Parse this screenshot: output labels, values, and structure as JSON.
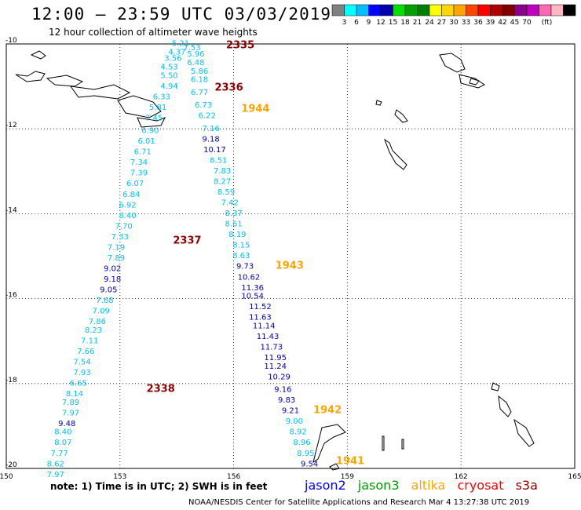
{
  "header": {
    "title": "12:00 – 23:59 UTC 03/03/2019",
    "subtitle": "12 hour collection of altimeter wave heights"
  },
  "scale": {
    "colors": [
      "#808080",
      "#00ffff",
      "#00bfff",
      "#0000ff",
      "#0000b0",
      "#00e000",
      "#00a000",
      "#008000",
      "#ffff00",
      "#ffd700",
      "#ffa500",
      "#ff4500",
      "#ff0000",
      "#b00000",
      "#800000",
      "#8b008b",
      "#c000c0",
      "#ff69b4",
      "#ffb6c1",
      "#000000"
    ],
    "labels": [
      "3",
      "6",
      "9",
      "12",
      "15",
      "18",
      "21",
      "24",
      "27",
      "30",
      "33",
      "36",
      "39",
      "42",
      "45",
      "70",
      "(ft)"
    ]
  },
  "satellites": {
    "jason2": {
      "label": "jason2",
      "color": "#0000ff"
    },
    "jason3": {
      "label": "jason3",
      "color": "#00a000"
    },
    "altika": {
      "label": "altika",
      "color": "#ffa500"
    },
    "cryosat": {
      "label": "cryosat",
      "color": "#ff0000"
    },
    "s3a": {
      "label": "s3a",
      "color": "#8b0000"
    }
  },
  "note": "note: 1) Time is in UTC; 2) SWH is in feet",
  "footer": "NOAA/NESDIS Center for Satellite Applications and Research   Mar  4 13:27:38 UTC 2019",
  "chart_data": {
    "type": "scatter",
    "xlim": [
      150,
      165
    ],
    "ylim": [
      -20,
      -10
    ],
    "x_ticks": [
      "150",
      "153",
      "156",
      "159",
      "162",
      "165"
    ],
    "y_ticks": [
      "-10",
      "-12",
      "-14",
      "-16",
      "-18",
      "-20"
    ],
    "track_times": [
      {
        "label": "2335",
        "x": 155.8,
        "y": -10.1,
        "color": "#8b0000"
      },
      {
        "label": "2336",
        "x": 155.5,
        "y": -11.1,
        "color": "#8b0000"
      },
      {
        "label": "1944",
        "x": 156.2,
        "y": -11.6,
        "color": "#ffa500"
      },
      {
        "label": "2337",
        "x": 154.4,
        "y": -14.7,
        "color": "#8b0000"
      },
      {
        "label": "1943",
        "x": 157.1,
        "y": -15.3,
        "color": "#ffa500"
      },
      {
        "label": "2338",
        "x": 153.7,
        "y": -18.2,
        "color": "#8b0000"
      },
      {
        "label": "1942",
        "x": 158.1,
        "y": -18.7,
        "color": "#ffa500"
      },
      {
        "label": "1941",
        "x": 158.7,
        "y": -19.9,
        "color": "#ffa500"
      }
    ],
    "points": [
      {
        "x": 154.6,
        "y": -10.05,
        "v": "5.21",
        "c": "#00bfff"
      },
      {
        "x": 154.9,
        "y": -10.15,
        "v": "7.53",
        "c": "#00bfff"
      },
      {
        "x": 154.5,
        "y": -10.25,
        "v": "4.37",
        "c": "#00bfff"
      },
      {
        "x": 155.0,
        "y": -10.3,
        "v": "5.96",
        "c": "#00bfff"
      },
      {
        "x": 154.4,
        "y": -10.4,
        "v": "3.56",
        "c": "#00bfff"
      },
      {
        "x": 155.0,
        "y": -10.5,
        "v": "6.48",
        "c": "#00bfff"
      },
      {
        "x": 154.3,
        "y": -10.6,
        "v": "4.53",
        "c": "#00bfff"
      },
      {
        "x": 155.1,
        "y": -10.7,
        "v": "5.86",
        "c": "#00bfff"
      },
      {
        "x": 154.3,
        "y": -10.8,
        "v": "5.50",
        "c": "#00bfff"
      },
      {
        "x": 155.1,
        "y": -10.9,
        "v": "6.18",
        "c": "#00bfff"
      },
      {
        "x": 154.3,
        "y": -11.05,
        "v": "4.94",
        "c": "#00bfff"
      },
      {
        "x": 155.1,
        "y": -11.2,
        "v": "6.77",
        "c": "#00bfff"
      },
      {
        "x": 154.1,
        "y": -11.3,
        "v": "6.33",
        "c": "#00bfff"
      },
      {
        "x": 155.2,
        "y": -11.5,
        "v": "6.73",
        "c": "#00bfff"
      },
      {
        "x": 154.0,
        "y": -11.55,
        "v": "5.81",
        "c": "#00bfff"
      },
      {
        "x": 155.3,
        "y": -11.75,
        "v": "6.22",
        "c": "#00bfff"
      },
      {
        "x": 153.9,
        "y": -11.8,
        "v": "7.45",
        "c": "#00bfff"
      },
      {
        "x": 155.4,
        "y": -12.05,
        "v": "7.16",
        "c": "#00bfff"
      },
      {
        "x": 153.8,
        "y": -12.1,
        "v": "6.90",
        "c": "#00bfff"
      },
      {
        "x": 155.4,
        "y": -12.3,
        "v": "9.18",
        "c": "#0000b0"
      },
      {
        "x": 153.7,
        "y": -12.35,
        "v": "6.01",
        "c": "#00bfff"
      },
      {
        "x": 155.5,
        "y": -12.55,
        "v": "10.17",
        "c": "#0000b0"
      },
      {
        "x": 153.6,
        "y": -12.6,
        "v": "6.71",
        "c": "#00bfff"
      },
      {
        "x": 155.6,
        "y": -12.8,
        "v": "8.51",
        "c": "#00bfff"
      },
      {
        "x": 153.5,
        "y": -12.85,
        "v": "7.34",
        "c": "#00bfff"
      },
      {
        "x": 155.7,
        "y": -13.05,
        "v": "7.83",
        "c": "#00bfff"
      },
      {
        "x": 153.5,
        "y": -13.1,
        "v": "7.39",
        "c": "#00bfff"
      },
      {
        "x": 155.7,
        "y": -13.3,
        "v": "8.27",
        "c": "#00bfff"
      },
      {
        "x": 153.4,
        "y": -13.35,
        "v": "6.07",
        "c": "#00bfff"
      },
      {
        "x": 155.8,
        "y": -13.55,
        "v": "8.59",
        "c": "#00bfff"
      },
      {
        "x": 153.3,
        "y": -13.6,
        "v": "6.84",
        "c": "#00bfff"
      },
      {
        "x": 155.9,
        "y": -13.8,
        "v": "7.42",
        "c": "#00bfff"
      },
      {
        "x": 153.2,
        "y": -13.85,
        "v": "6.92",
        "c": "#00bfff"
      },
      {
        "x": 156.0,
        "y": -14.05,
        "v": "8.37",
        "c": "#00bfff"
      },
      {
        "x": 153.2,
        "y": -14.1,
        "v": "8.40",
        "c": "#00bfff"
      },
      {
        "x": 156.0,
        "y": -14.3,
        "v": "8.61",
        "c": "#00bfff"
      },
      {
        "x": 153.1,
        "y": -14.35,
        "v": "7.70",
        "c": "#00bfff"
      },
      {
        "x": 156.1,
        "y": -14.55,
        "v": "8.19",
        "c": "#00bfff"
      },
      {
        "x": 153.0,
        "y": -14.6,
        "v": "7.33",
        "c": "#00bfff"
      },
      {
        "x": 156.2,
        "y": -14.8,
        "v": "8.15",
        "c": "#00bfff"
      },
      {
        "x": 152.9,
        "y": -14.85,
        "v": "7.19",
        "c": "#00bfff"
      },
      {
        "x": 156.2,
        "y": -15.05,
        "v": "8.63",
        "c": "#00bfff"
      },
      {
        "x": 152.9,
        "y": -15.1,
        "v": "7.89",
        "c": "#00bfff"
      },
      {
        "x": 156.3,
        "y": -15.3,
        "v": "9.73",
        "c": "#0000b0"
      },
      {
        "x": 152.8,
        "y": -15.35,
        "v": "9.02",
        "c": "#0000b0"
      },
      {
        "x": 156.4,
        "y": -15.55,
        "v": "10.62",
        "c": "#0000b0"
      },
      {
        "x": 152.8,
        "y": -15.6,
        "v": "9.18",
        "c": "#0000b0"
      },
      {
        "x": 156.5,
        "y": -15.8,
        "v": "11.36",
        "c": "#0000b0"
      },
      {
        "x": 152.7,
        "y": -15.85,
        "v": "9.05",
        "c": "#0000b0"
      },
      {
        "x": 156.5,
        "y": -16.0,
        "v": "10.54",
        "c": "#0000b0"
      },
      {
        "x": 152.6,
        "y": -16.1,
        "v": "7.68",
        "c": "#00bfff"
      },
      {
        "x": 156.7,
        "y": -16.25,
        "v": "11.52",
        "c": "#0000b0"
      },
      {
        "x": 152.5,
        "y": -16.35,
        "v": "7.09",
        "c": "#00bfff"
      },
      {
        "x": 156.7,
        "y": -16.5,
        "v": "11.63",
        "c": "#0000b0"
      },
      {
        "x": 152.4,
        "y": -16.6,
        "v": "7.86",
        "c": "#00bfff"
      },
      {
        "x": 156.8,
        "y": -16.7,
        "v": "11.14",
        "c": "#0000b0"
      },
      {
        "x": 152.3,
        "y": -16.8,
        "v": "8.23",
        "c": "#00bfff"
      },
      {
        "x": 156.9,
        "y": -16.95,
        "v": "11.43",
        "c": "#0000b0"
      },
      {
        "x": 152.2,
        "y": -17.05,
        "v": "7.11",
        "c": "#00bfff"
      },
      {
        "x": 157.0,
        "y": -17.2,
        "v": "11.73",
        "c": "#0000b0"
      },
      {
        "x": 152.1,
        "y": -17.3,
        "v": "7.66",
        "c": "#00bfff"
      },
      {
        "x": 157.1,
        "y": -17.45,
        "v": "11.95",
        "c": "#0000b0"
      },
      {
        "x": 152.0,
        "y": -17.55,
        "v": "7.54",
        "c": "#00bfff"
      },
      {
        "x": 157.1,
        "y": -17.65,
        "v": "11.24",
        "c": "#0000b0"
      },
      {
        "x": 152.0,
        "y": -17.8,
        "v": "7.93",
        "c": "#00bfff"
      },
      {
        "x": 157.2,
        "y": -17.9,
        "v": "10.29",
        "c": "#0000b0"
      },
      {
        "x": 151.9,
        "y": -18.05,
        "v": "6.65",
        "c": "#00bfff"
      },
      {
        "x": 151.8,
        "y": -18.3,
        "v": "8.14",
        "c": "#00bfff"
      },
      {
        "x": 157.3,
        "y": -18.2,
        "v": "9.16",
        "c": "#0000b0"
      },
      {
        "x": 151.7,
        "y": -18.5,
        "v": "7.89",
        "c": "#00bfff"
      },
      {
        "x": 157.4,
        "y": -18.45,
        "v": "9.83",
        "c": "#0000b0"
      },
      {
        "x": 151.7,
        "y": -18.75,
        "v": "7.97",
        "c": "#00bfff"
      },
      {
        "x": 157.5,
        "y": -18.7,
        "v": "9.21",
        "c": "#0000b0"
      },
      {
        "x": 151.6,
        "y": -19.0,
        "v": "9.48",
        "c": "#0000b0"
      },
      {
        "x": 157.6,
        "y": -18.95,
        "v": "9.00",
        "c": "#00bfff"
      },
      {
        "x": 151.5,
        "y": -19.2,
        "v": "8.40",
        "c": "#00bfff"
      },
      {
        "x": 157.7,
        "y": -19.2,
        "v": "8.92",
        "c": "#00bfff"
      },
      {
        "x": 151.5,
        "y": -19.45,
        "v": "8.07",
        "c": "#00bfff"
      },
      {
        "x": 157.8,
        "y": -19.45,
        "v": "8.96",
        "c": "#00bfff"
      },
      {
        "x": 151.4,
        "y": -19.7,
        "v": "7.77",
        "c": "#00bfff"
      },
      {
        "x": 157.9,
        "y": -19.7,
        "v": "8.95",
        "c": "#00bfff"
      },
      {
        "x": 151.3,
        "y": -19.95,
        "v": "8.62",
        "c": "#00bfff"
      },
      {
        "x": 158.0,
        "y": -19.95,
        "v": "9.54",
        "c": "#0000b0"
      },
      {
        "x": 151.3,
        "y": -20.2,
        "v": "7.97",
        "c": "#00bfff"
      }
    ]
  }
}
